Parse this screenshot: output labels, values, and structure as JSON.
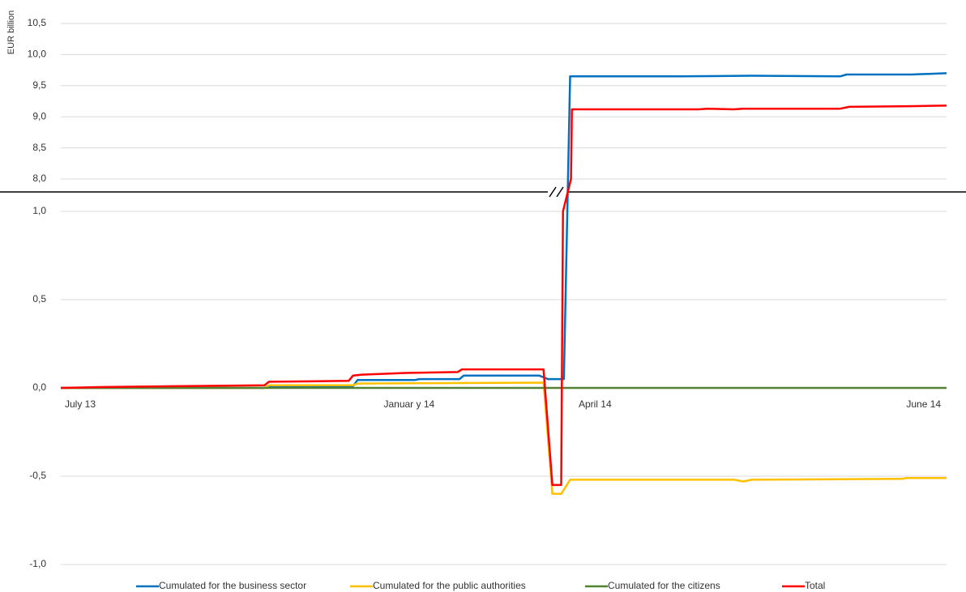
{
  "chart_data": {
    "type": "line",
    "y_label": "EUR billion",
    "ylim": [
      -1.0,
      10.5
    ],
    "axis_break": [
      1.0,
      8.0
    ],
    "yticks": [
      {
        "value": -1.0,
        "label": "-1,0"
      },
      {
        "value": -0.5,
        "label": "-0,5"
      },
      {
        "value": 0,
        "label": "0,0"
      },
      {
        "value": 0.5,
        "label": "0,5"
      },
      {
        "value": 1.0,
        "label": "1,0"
      },
      {
        "value": 8.0,
        "label": "8,0"
      },
      {
        "value": 8.5,
        "label": "8,5"
      },
      {
        "value": 9.0,
        "label": "9,0"
      },
      {
        "value": 9.5,
        "label": "9,5"
      },
      {
        "value": 10.0,
        "label": "10,0"
      },
      {
        "value": 10.5,
        "label": "10,5"
      }
    ],
    "xlim": [
      0,
      100
    ],
    "xticks": [
      {
        "value": 0,
        "label": "July 13"
      },
      {
        "value": 36,
        "label": "Januar y 14"
      },
      {
        "value": 58,
        "label": "April 14"
      },
      {
        "value": 95,
        "label": "June 14"
      }
    ],
    "grid": true,
    "legend": "bottom",
    "series": [
      {
        "name": "Cumulated for the business sector",
        "color": "#0070c0",
        "x": [
          0,
          23,
          23.5,
          33,
          33.5,
          40,
          40.5,
          45,
          45.5,
          54,
          54.5,
          55,
          56.8,
          57.5,
          70,
          78,
          88,
          88.7,
          96,
          100
        ],
        "values": [
          0,
          0,
          0.01,
          0.01,
          0.045,
          0.045,
          0.05,
          0.05,
          0.07,
          0.07,
          0.06,
          0.05,
          0.05,
          9.65,
          9.65,
          9.66,
          9.65,
          9.68,
          9.68,
          9.7
        ]
      },
      {
        "name": "Cumulated for the public authorities",
        "color": "#ffc000",
        "x": [
          0,
          23,
          23.5,
          33,
          33.5,
          54.5,
          55.5,
          56.5,
          57.5,
          70,
          76,
          77,
          78,
          95,
          95.5,
          100
        ],
        "values": [
          0,
          0,
          0.015,
          0.015,
          0.025,
          0.03,
          -0.6,
          -0.6,
          -0.52,
          -0.52,
          -0.52,
          -0.53,
          -0.52,
          -0.515,
          -0.51,
          -0.51
        ]
      },
      {
        "name": "Cumulated for the citizens",
        "color": "#548235",
        "x": [
          0,
          55,
          100
        ],
        "values": [
          0,
          0,
          0
        ]
      },
      {
        "name": "Total",
        "color": "#ff0000",
        "x": [
          0,
          5,
          14,
          23,
          23.5,
          32.5,
          33,
          34,
          39,
          44.8,
          45.3,
          54.5,
          55.5,
          56.5,
          56.7,
          57.6,
          57.7,
          72,
          73,
          76,
          77,
          88,
          89,
          96,
          100
        ],
        "values": [
          0,
          0.005,
          0.01,
          0.015,
          0.035,
          0.04,
          0.07,
          0.075,
          0.085,
          0.09,
          0.105,
          0.105,
          -0.55,
          -0.55,
          1.0,
          8.0,
          9.12,
          9.12,
          9.13,
          9.12,
          9.13,
          9.13,
          9.16,
          9.17,
          9.18
        ]
      }
    ]
  }
}
